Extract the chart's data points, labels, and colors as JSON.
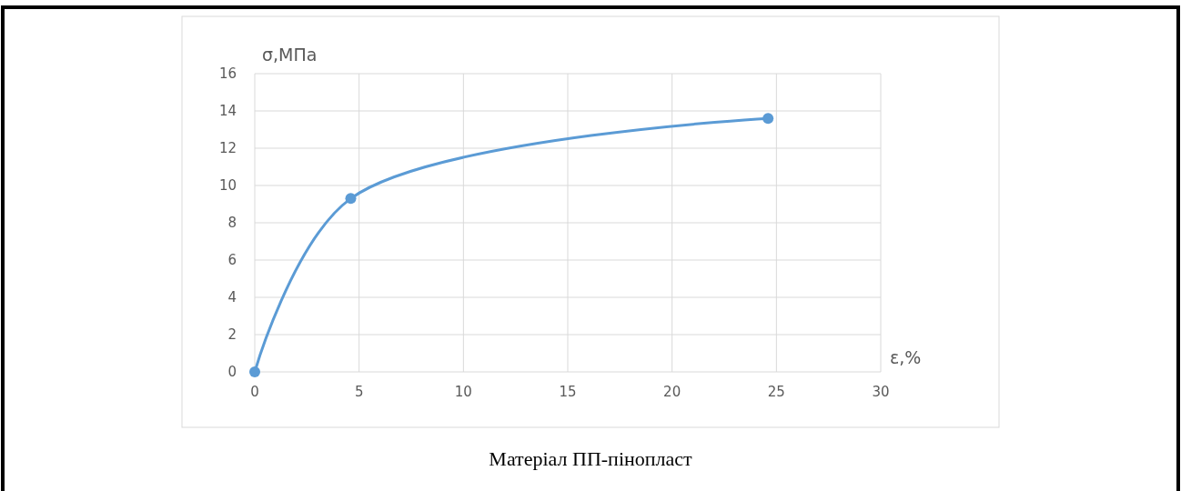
{
  "chart_data": {
    "type": "line",
    "xlabel": "ε,%",
    "ylabel": "σ,МПа",
    "x": [
      0,
      4.6,
      24.6
    ],
    "series": [
      {
        "color": "#5b9bd5",
        "values": [
          0,
          9.3,
          13.6
        ]
      }
    ],
    "xlim": [
      0,
      30
    ],
    "xticks": [
      0,
      5,
      10,
      15,
      20,
      25,
      30
    ],
    "ylim": [
      0,
      16
    ],
    "yticks": [
      0,
      2,
      4,
      6,
      8,
      10,
      12,
      14,
      16
    ],
    "grid": true,
    "marker": "circle",
    "line_style": "solid",
    "annotations": [
      "Матеріал ПП-пінопласт"
    ]
  }
}
